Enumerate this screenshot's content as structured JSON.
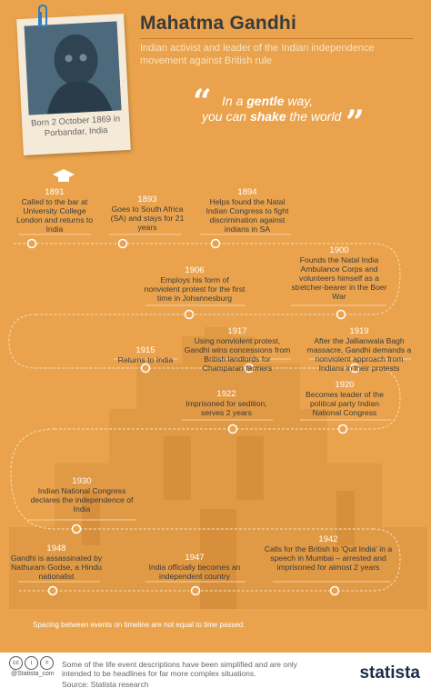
{
  "header": {
    "title": "Mahatma Gandhi",
    "subtitle": "Indian activist and leader of the Indian independence movement against British rule",
    "born": "Born 2 October 1869 in Porbandar, India"
  },
  "quote": {
    "part1": "In a ",
    "gentle": "gentle",
    "part2": " way,",
    "part3": "you can ",
    "shake": "shake",
    "part4": " the world"
  },
  "events": [
    {
      "year": "1891",
      "text": "Called to the bar at University College London and returns to India"
    },
    {
      "year": "1893",
      "text": "Goes to South Africa (SA) and stays for 21 years"
    },
    {
      "year": "1894",
      "text": "Helps found the Natal Indian Congress to fight discrimination against indians in SA"
    },
    {
      "year": "1906",
      "text": "Employs his form of nonviolent protest for the first time in Johannesburg"
    },
    {
      "year": "1900",
      "text": "Founds the Natal India Ambulance Corps and volunteers himself as a stretcher-bearer in the Boer War"
    },
    {
      "year": "1915",
      "text": "Returns to India"
    },
    {
      "year": "1917",
      "text": "Using nonviolent protest, Gandhi wins concessions from British landlords for Champaran farmers"
    },
    {
      "year": "1919",
      "text": "After the Jallianwala Bagh massacre, Gandhi demands a nonviolent approach from Indians in their protests"
    },
    {
      "year": "1922",
      "text": "Imprisoned for sedition, serves 2 years"
    },
    {
      "year": "1920",
      "text": "Becomes leader of the political party Indian National Congress"
    },
    {
      "year": "1930",
      "text": "Indian National Congress declares the independence of India"
    },
    {
      "year": "1948",
      "text": "Gandhi is assassinated by Nathuram Godse, a Hindu nationalist"
    },
    {
      "year": "1947",
      "text": "India officially becomes an independent country"
    },
    {
      "year": "1942",
      "text": "Calls for the British to 'Quit India' in a speech in Mumbai – arrested and imprisoned for almost 2 years"
    }
  ],
  "note": "Spacing between events on timeline are not equal to time passed.",
  "footer": {
    "disclaimer": "Some of the life event descriptions have been simplified and are only intended to be headlines for far more complex situations.",
    "source": "Source: Statista research",
    "credit": "@Statista_com",
    "brand": "statista"
  },
  "colors": {
    "background": "#eaa34c",
    "accent": "#f8e3c4",
    "text": "#3b3b3b",
    "brand": "#1c2d4a"
  },
  "icons": [
    "paperclip-icon",
    "graduation-cap-icon",
    "quote-open-icon",
    "quote-close-icon",
    "cc-icon",
    "by-icon",
    "equals-icon"
  ]
}
